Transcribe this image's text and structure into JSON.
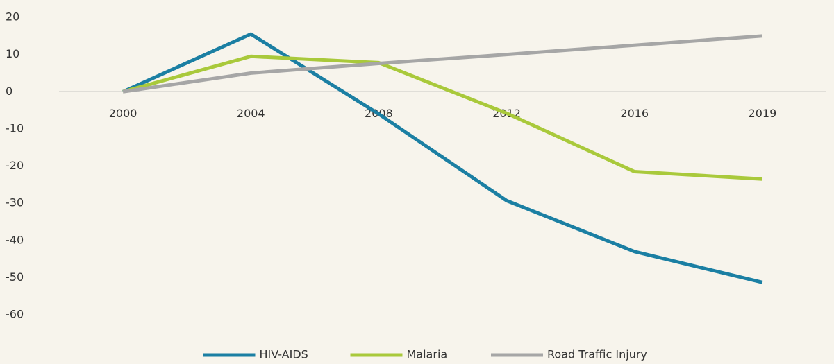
{
  "chart_data": {
    "type": "line",
    "categories": [
      "2000",
      "2004",
      "2008",
      "2012",
      "2016",
      "2019"
    ],
    "series": [
      {
        "name": "HIV-AIDS",
        "color": "#1b7fa3",
        "values": [
          0,
          15.5,
          -6,
          -29.3,
          -43,
          -51.3
        ]
      },
      {
        "name": "Malaria",
        "color": "#a9c93b",
        "values": [
          0,
          9.5,
          7.8,
          -5.8,
          -21.5,
          -23.5
        ]
      },
      {
        "name": "Road Traffic Injury",
        "color": "#a6a6a6",
        "values": [
          0,
          5,
          7.6,
          10,
          12.5,
          15
        ]
      }
    ],
    "ylim": [
      -60,
      20
    ],
    "yticks": [
      -60,
      -50,
      -40,
      -30,
      -20,
      -10,
      0,
      10,
      20
    ],
    "grid": false
  }
}
